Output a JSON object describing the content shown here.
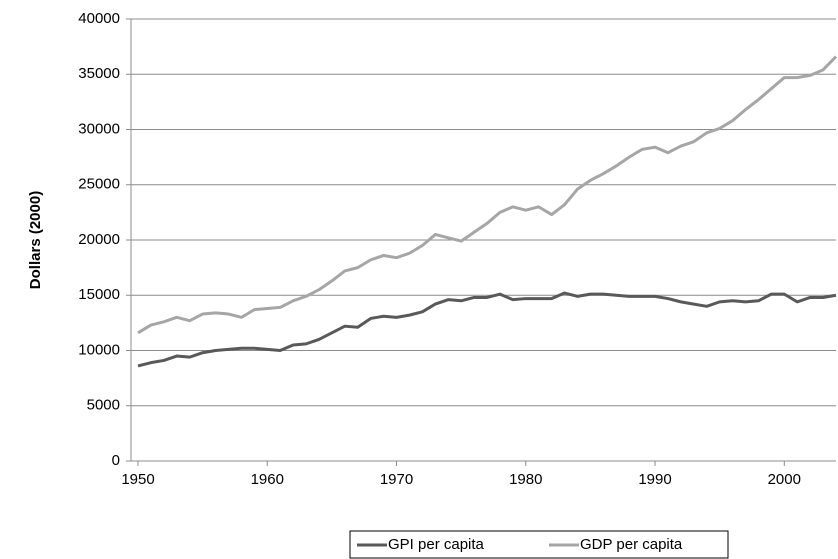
{
  "chart_data": {
    "type": "line",
    "y_label": "Dollars (2000)",
    "x": [
      1950,
      1951,
      1952,
      1953,
      1954,
      1955,
      1956,
      1957,
      1958,
      1959,
      1960,
      1961,
      1962,
      1963,
      1964,
      1965,
      1966,
      1967,
      1968,
      1969,
      1970,
      1971,
      1972,
      1973,
      1974,
      1975,
      1976,
      1977,
      1978,
      1979,
      1980,
      1981,
      1982,
      1983,
      1984,
      1985,
      1986,
      1987,
      1988,
      1989,
      1990,
      1991,
      1992,
      1993,
      1994,
      1995,
      1996,
      1997,
      1998,
      1999,
      2000,
      2001,
      2002,
      2003,
      2004
    ],
    "series": [
      {
        "name": "GPI per capita",
        "color": "#595959",
        "values": [
          8600,
          8900,
          9100,
          9500,
          9400,
          9800,
          10000,
          10100,
          10200,
          10200,
          10100,
          10000,
          10500,
          10600,
          11000,
          11600,
          12200,
          12100,
          12900,
          13100,
          13000,
          13200,
          13500,
          14200,
          14600,
          14500,
          14800,
          14800,
          15100,
          14600,
          14700,
          14700,
          14700,
          15200,
          14900,
          15100,
          15100,
          15000,
          14900,
          14900,
          14900,
          14700,
          14400,
          14200,
          14000,
          14400,
          14500,
          14400,
          14500,
          15100,
          15100,
          14400,
          14800,
          14800,
          15000
        ]
      },
      {
        "name": "GDP per capita",
        "color": "#a6a6a6",
        "values": [
          11600,
          12300,
          12600,
          13000,
          12700,
          13300,
          13400,
          13300,
          13000,
          13700,
          13800,
          13900,
          14500,
          14900,
          15500,
          16300,
          17200,
          17500,
          18200,
          18600,
          18400,
          18800,
          19500,
          20500,
          20200,
          19900,
          20700,
          21500,
          22500,
          23000,
          22700,
          23000,
          22300,
          23200,
          24600,
          25400,
          26000,
          26700,
          27500,
          28200,
          28400,
          27900,
          28500,
          28900,
          29700,
          30100,
          30800,
          31800,
          32700,
          33700,
          34700,
          34700,
          34900,
          35400,
          36600
        ]
      }
    ],
    "xlim": [
      1950,
      2004
    ],
    "xticks": [
      1950,
      1960,
      1970,
      1980,
      1990,
      2000
    ],
    "ylim": [
      0,
      40000
    ],
    "yticks": [
      0,
      5000,
      10000,
      15000,
      20000,
      25000,
      30000,
      35000,
      40000
    ],
    "grid": true,
    "legend": "bottom"
  }
}
